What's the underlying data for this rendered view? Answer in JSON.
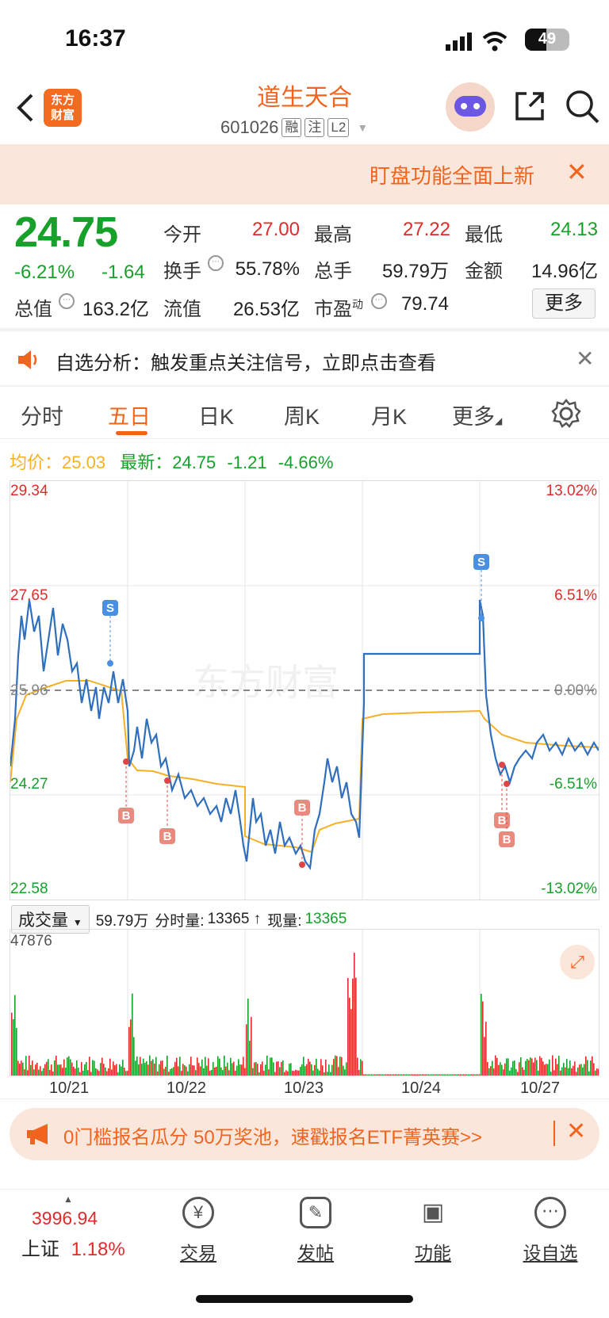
{
  "status_bar": {
    "time": "16:37",
    "battery": "49"
  },
  "header": {
    "logo": "东方财富",
    "title": "道生天合",
    "code": "601026",
    "tags": [
      "融",
      "注",
      "L2"
    ],
    "icons": [
      "back-icon",
      "share-icon",
      "search-icon"
    ]
  },
  "top_banner": {
    "text": "盯盘功能全面上新",
    "close": "✕"
  },
  "quote": {
    "price": "24.75",
    "change_pct": "-6.21%",
    "change": "-1.64",
    "fields": [
      {
        "label": "今开",
        "value": "27.00",
        "color": "red"
      },
      {
        "label": "最高",
        "value": "27.22",
        "color": "red"
      },
      {
        "label": "最低",
        "value": "24.13",
        "color": "green"
      },
      {
        "label": "换手",
        "value": "55.78%",
        "color": "dark"
      },
      {
        "label": "总手",
        "value": "59.79万",
        "color": "dark"
      },
      {
        "label": "金额",
        "value": "14.96亿",
        "color": "dark"
      },
      {
        "label": "总值",
        "value": "163.2亿",
        "color": "dark"
      },
      {
        "label": "流值",
        "value": "26.53亿",
        "color": "dark"
      },
      {
        "label": "市盈",
        "sup": "动",
        "value": "79.74",
        "color": "dark"
      }
    ],
    "more_button": "更多"
  },
  "notice": {
    "text": "自选分析：触发重点关注信号，立即点击查看",
    "close": "✕"
  },
  "tabs": {
    "items": [
      "分时",
      "五日",
      "日K",
      "周K",
      "月K",
      "更多"
    ],
    "active": "五日"
  },
  "chart_info": {
    "avg_label": "均价：",
    "avg_value": "25.03",
    "latest_label": "最新：",
    "latest_value": "24.75",
    "latest_change": "-1.21",
    "latest_pct": "-4.66%"
  },
  "chart_data": {
    "type": "line",
    "y_left_ticks": [
      "29.34",
      "27.65",
      "25.96",
      "24.27",
      "22.58"
    ],
    "y_right_ticks": [
      "13.02%",
      "6.51%",
      "0.00%",
      "-6.51%",
      "-13.02%"
    ],
    "x_dates": [
      "10/21",
      "10/22",
      "10/23",
      "10/24",
      "10/27"
    ],
    "ylim": [
      22.58,
      29.34
    ],
    "reference_price": 25.96,
    "series": [
      {
        "color": "#2f6fbe"
      },
      {
        "name": "均价",
        "color": "#f5b025"
      }
    ],
    "markers": [
      "S",
      "B",
      "B",
      "B",
      "S",
      "B",
      "B"
    ],
    "watermark": "东方财富"
  },
  "volume": {
    "selector": "成交量",
    "total": "59.79万",
    "fenshi_label": "分时量:",
    "fenshi_value": "13365 ↑",
    "now_label": "现量:",
    "now_value": "13365",
    "max": "47876"
  },
  "bottom_banner": {
    "text": "0门槛报名瓜分 50万奖池，速戳报名ETF菁英赛>>",
    "close": "✕"
  },
  "bottom_nav": {
    "index_value": "3996.94",
    "index_name": "上证",
    "index_pct": "1.18%",
    "items": [
      {
        "label": "交易",
        "icon": "yen-icon"
      },
      {
        "label": "发帖",
        "icon": "edit-icon"
      },
      {
        "label": "功能",
        "icon": "apps-icon"
      },
      {
        "label": "设自选",
        "icon": "more-icon"
      }
    ]
  }
}
